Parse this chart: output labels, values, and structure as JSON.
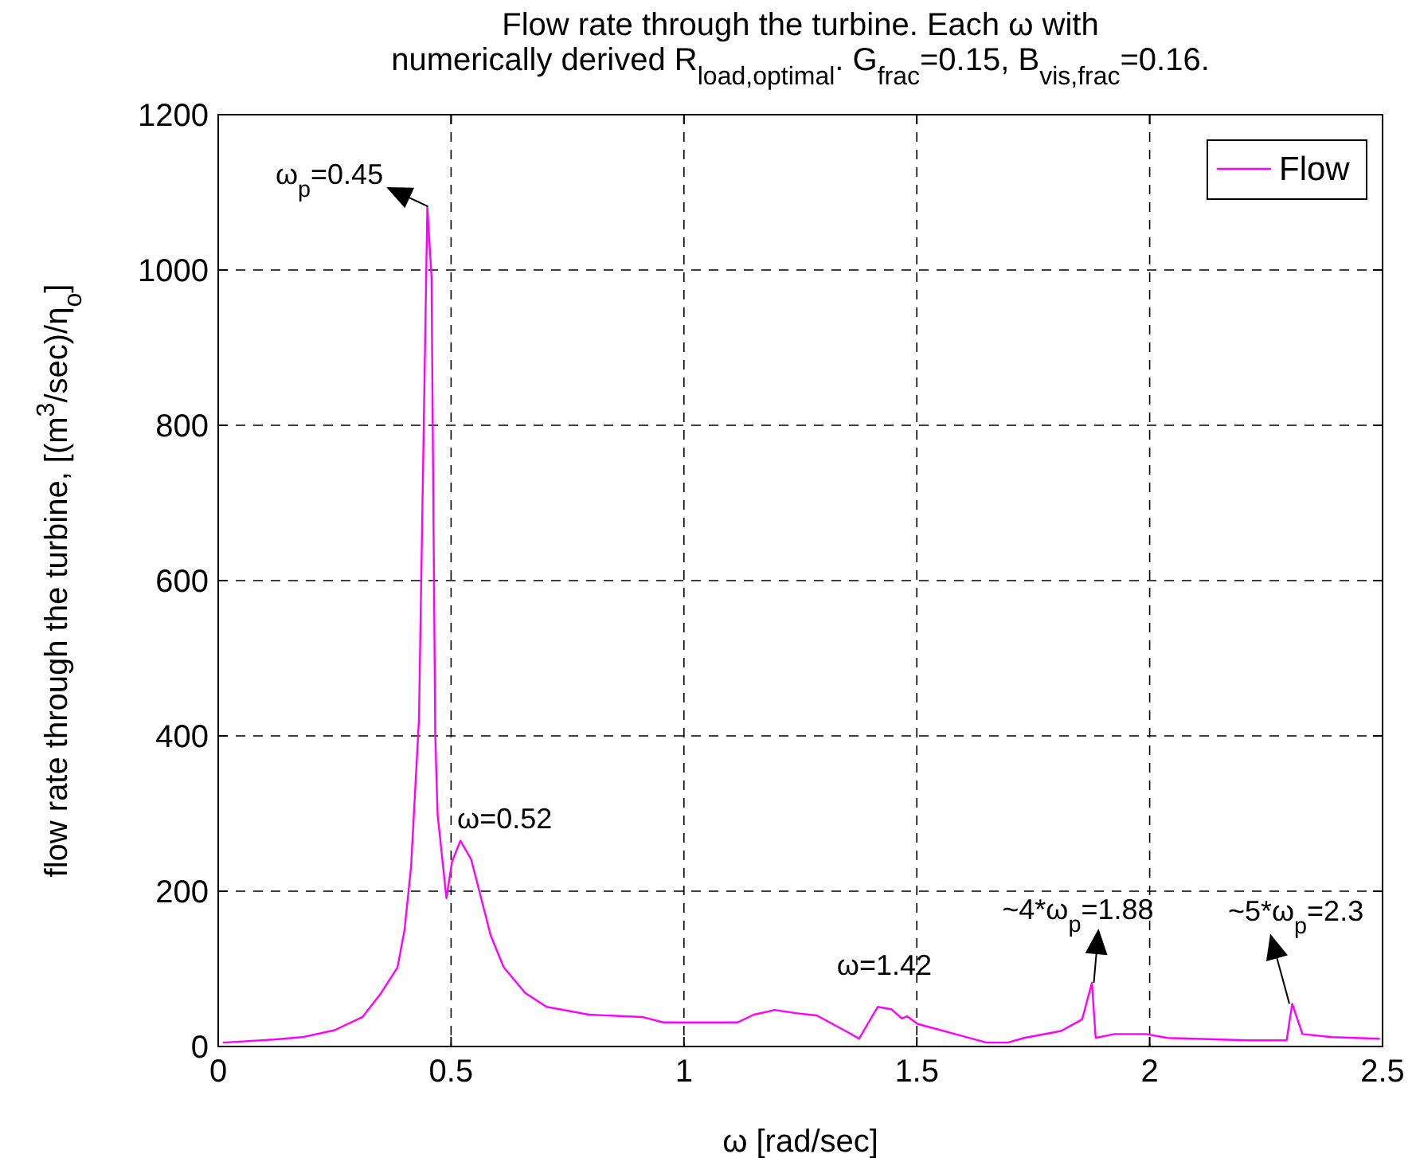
{
  "chart_data": {
    "type": "line",
    "title": "Flow rate through the turbine.  Each ω with\nnumerically derived R$_{load,optimal}$.  G$_{frac}$=0.15, B$_{vis,frac}$=0.16.",
    "xlabel": "ω [rad/sec]",
    "ylabel": "flow rate through the turbine, [(m$^{3}$/sec)/η$_{o}$]",
    "xlim": [
      0,
      2.5
    ],
    "ylim": [
      0,
      1200
    ],
    "xticks": [
      0,
      0.5,
      1,
      1.5,
      2,
      2.5
    ],
    "yticks": [
      0,
      200,
      400,
      600,
      800,
      1000,
      1200
    ],
    "grid": true,
    "legend": "top right",
    "marker": "none",
    "line_style": "solid",
    "series": [
      {
        "name": "Flow",
        "color": "#ff00ff",
        "x": [
          0.01,
          0.12,
          0.18,
          0.25,
          0.31,
          0.35,
          0.385,
          0.4,
          0.414,
          0.431,
          0.449,
          0.458,
          0.466,
          0.471,
          0.49,
          0.502,
          0.52,
          0.543,
          0.556,
          0.585,
          0.613,
          0.659,
          0.705,
          0.796,
          0.91,
          0.956,
          1.115,
          1.15,
          1.195,
          1.24,
          1.285,
          1.353,
          1.376,
          1.416,
          1.445,
          1.468,
          1.479,
          1.502,
          1.582,
          1.65,
          1.695,
          1.73,
          1.81,
          1.855,
          1.876,
          1.884,
          1.924,
          1.992,
          2.038,
          2.209,
          2.294,
          2.306,
          2.328,
          2.391,
          2.494
        ],
        "values": [
          5,
          9,
          12,
          21,
          38,
          69,
          102,
          150,
          231,
          421,
          1082,
          991,
          401,
          299,
          191,
          238,
          265,
          241,
          211,
          143,
          102,
          69,
          51,
          41,
          38,
          31,
          31,
          41,
          47,
          43,
          40,
          18,
          10,
          51,
          48,
          36,
          39,
          29,
          16,
          5,
          5,
          11,
          20,
          35,
          82,
          11,
          16,
          16,
          11,
          8,
          8,
          55,
          16,
          12,
          10
        ]
      }
    ],
    "annotations": [
      {
        "text": "ω$_{p}$=0.45",
        "x": 0.45,
        "y": 1082
      },
      {
        "text": "ω=0.52",
        "x": 0.52,
        "y": 265
      },
      {
        "text": "ω=1.42",
        "x": 1.42,
        "y": 51
      },
      {
        "text": "~4*ω$_{p}$=1.88",
        "x": 1.88,
        "y": 82
      },
      {
        "text": "~5*ω$_{p}$=2.3",
        "x": 2.3,
        "y": 55
      }
    ]
  }
}
